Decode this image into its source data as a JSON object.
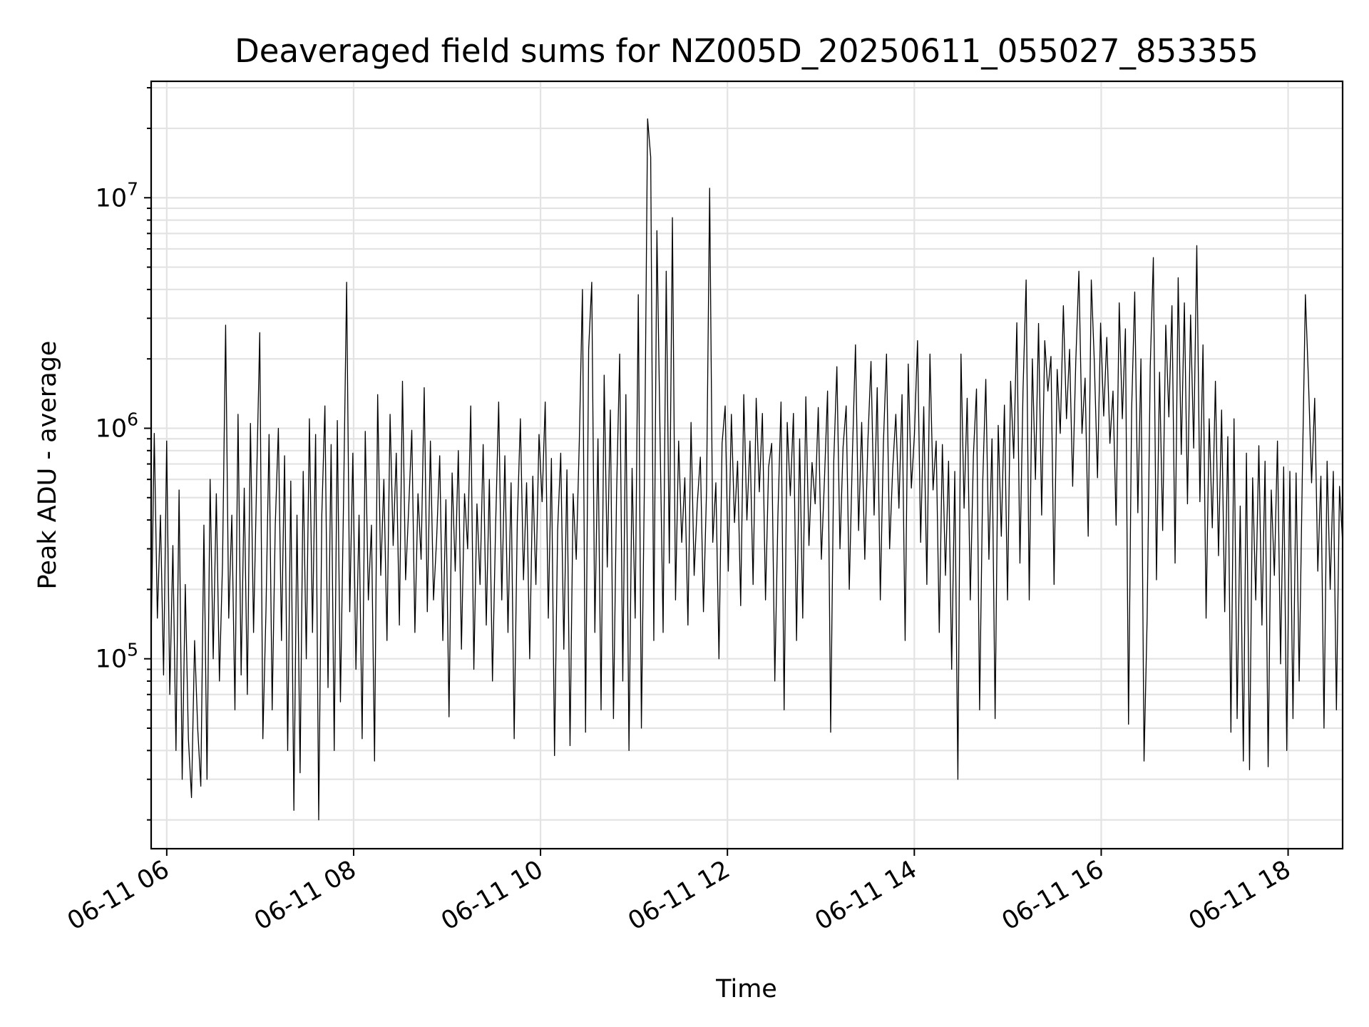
{
  "chart_data": {
    "type": "line",
    "title": "Deaveraged field sums for NZ005D_20250611_055027_853355",
    "xlabel": "Time",
    "ylabel": "Peak ADU - average",
    "yscale": "log",
    "ylim": [
      15000,
      32000000
    ],
    "xlim": [
      "2025-06-11 05:50",
      "2025-06-11 18:35"
    ],
    "grid": true,
    "x_ticks": [
      {
        "value": "2025-06-11 06:00",
        "label": "06-11 06"
      },
      {
        "value": "2025-06-11 08:00",
        "label": "06-11 08"
      },
      {
        "value": "2025-06-11 10:00",
        "label": "06-11 10"
      },
      {
        "value": "2025-06-11 12:00",
        "label": "06-11 12"
      },
      {
        "value": "2025-06-11 14:00",
        "label": "06-11 14"
      },
      {
        "value": "2025-06-11 16:00",
        "label": "06-11 16"
      },
      {
        "value": "2025-06-11 18:00",
        "label": "06-11 18"
      }
    ],
    "y_ticks": [
      {
        "value": 100000,
        "base": "10",
        "exp": "5"
      },
      {
        "value": 1000000,
        "base": "10",
        "exp": "6"
      },
      {
        "value": 10000000,
        "base": "10",
        "exp": "7"
      }
    ],
    "series": [
      {
        "style": {
          "color": "#000000"
        },
        "x_start": "2025-06-11 05:50",
        "x_end": "2025-06-11 18:35",
        "values": [
          120000,
          950000,
          150000,
          420000,
          85000,
          880000,
          70000,
          310000,
          40000,
          540000,
          30000,
          210000,
          45000,
          25000,
          120000,
          50000,
          28000,
          380000,
          30000,
          600000,
          100000,
          520000,
          80000,
          260000,
          2800000,
          150000,
          420000,
          60000,
          1150000,
          85000,
          550000,
          70000,
          1050000,
          130000,
          600000,
          2600000,
          45000,
          160000,
          940000,
          60000,
          380000,
          1000000,
          120000,
          760000,
          40000,
          590000,
          22000,
          420000,
          32000,
          650000,
          100000,
          1100000,
          130000,
          940000,
          20000,
          420000,
          1250000,
          75000,
          850000,
          40000,
          1080000,
          65000,
          480000,
          4300000,
          160000,
          780000,
          90000,
          420000,
          45000,
          970000,
          180000,
          380000,
          36000,
          1400000,
          230000,
          600000,
          120000,
          1150000,
          310000,
          780000,
          140000,
          1600000,
          220000,
          450000,
          980000,
          130000,
          520000,
          270000,
          1500000,
          160000,
          880000,
          180000,
          330000,
          760000,
          120000,
          490000,
          56000,
          640000,
          240000,
          800000,
          110000,
          520000,
          300000,
          1250000,
          90000,
          470000,
          210000,
          850000,
          140000,
          600000,
          80000,
          370000,
          1300000,
          180000,
          760000,
          130000,
          580000,
          45000,
          390000,
          1100000,
          220000,
          580000,
          100000,
          620000,
          210000,
          940000,
          480000,
          1300000,
          150000,
          740000,
          38000,
          360000,
          780000,
          110000,
          660000,
          42000,
          520000,
          270000,
          890000,
          4000000,
          48000,
          2200000,
          4300000,
          130000,
          900000,
          60000,
          1700000,
          250000,
          1200000,
          55000,
          520000,
          2100000,
          80000,
          1400000,
          40000,
          670000,
          150000,
          3800000,
          50000,
          620000,
          22000000,
          15000000,
          120000,
          7200000,
          950000,
          130000,
          4800000,
          260000,
          8200000,
          180000,
          880000,
          320000,
          610000,
          140000,
          1060000,
          230000,
          470000,
          750000,
          160000,
          540000,
          11000000,
          320000,
          580000,
          100000,
          860000,
          1250000,
          240000,
          1150000,
          390000,
          720000,
          170000,
          1400000,
          400000,
          880000,
          210000,
          1350000,
          530000,
          1160000,
          180000,
          680000,
          860000,
          80000,
          420000,
          1300000,
          60000,
          1060000,
          510000,
          1160000,
          120000,
          900000,
          150000,
          1370000,
          310000,
          710000,
          470000,
          1230000,
          270000,
          600000,
          1450000,
          48000,
          720000,
          1850000,
          300000,
          830000,
          1250000,
          200000,
          760000,
          2300000,
          360000,
          1060000,
          270000,
          880000,
          1950000,
          420000,
          1500000,
          180000,
          860000,
          2100000,
          300000,
          670000,
          1150000,
          450000,
          1400000,
          120000,
          1900000,
          550000,
          940000,
          2400000,
          320000,
          1240000,
          210000,
          2100000,
          540000,
          880000,
          130000,
          850000,
          230000,
          720000,
          90000,
          650000,
          30000,
          2100000,
          450000,
          1350000,
          180000,
          760000,
          1480000,
          60000,
          580000,
          1630000,
          270000,
          900000,
          55000,
          1030000,
          340000,
          1260000,
          180000,
          1600000,
          740000,
          2870000,
          260000,
          1470000,
          4400000,
          180000,
          2000000,
          600000,
          2850000,
          420000,
          2400000,
          1450000,
          2050000,
          210000,
          1800000,
          950000,
          3400000,
          1100000,
          2200000,
          560000,
          1950000,
          4800000,
          950000,
          1650000,
          340000,
          4400000,
          1900000,
          610000,
          2860000,
          1130000,
          2480000,
          860000,
          1450000,
          380000,
          3500000,
          1100000,
          2700000,
          52000,
          1200000,
          3900000,
          430000,
          2000000,
          36000,
          150000,
          1850000,
          5500000,
          220000,
          1750000,
          360000,
          2800000,
          1120000,
          3400000,
          260000,
          4500000,
          770000,
          3500000,
          470000,
          3100000,
          820000,
          6200000,
          480000,
          2300000,
          150000,
          1100000,
          370000,
          1600000,
          280000,
          1200000,
          160000,
          920000,
          48000,
          1100000,
          55000,
          460000,
          36000,
          780000,
          33000,
          610000,
          180000,
          840000,
          140000,
          720000,
          34000,
          540000,
          230000,
          880000,
          95000,
          680000,
          40000,
          650000,
          55000,
          640000,
          80000,
          610000,
          3800000,
          1600000,
          580000,
          1350000,
          240000,
          620000,
          50000,
          720000,
          200000,
          650000,
          60000,
          560000,
          320000
        ]
      }
    ]
  }
}
